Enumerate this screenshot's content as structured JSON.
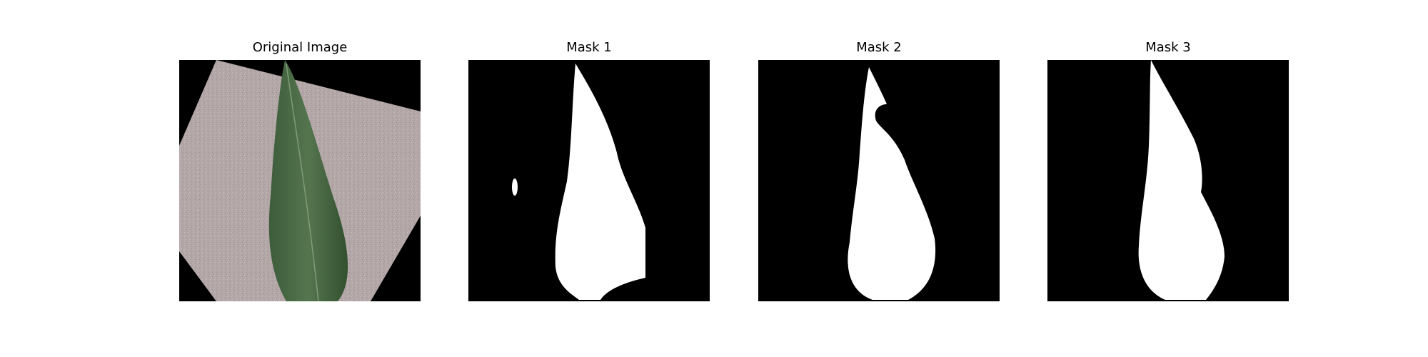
{
  "figure": {
    "panels": [
      {
        "title": "Original Image"
      },
      {
        "title": "Mask 1"
      },
      {
        "title": "Mask 2"
      },
      {
        "title": "Mask 3"
      }
    ],
    "colors": {
      "background": "#000000",
      "mask": "#ffffff",
      "paper": "#b6aaaa",
      "leaf": "#4a6a45",
      "leaf_dark": "#2e4a2c"
    }
  }
}
